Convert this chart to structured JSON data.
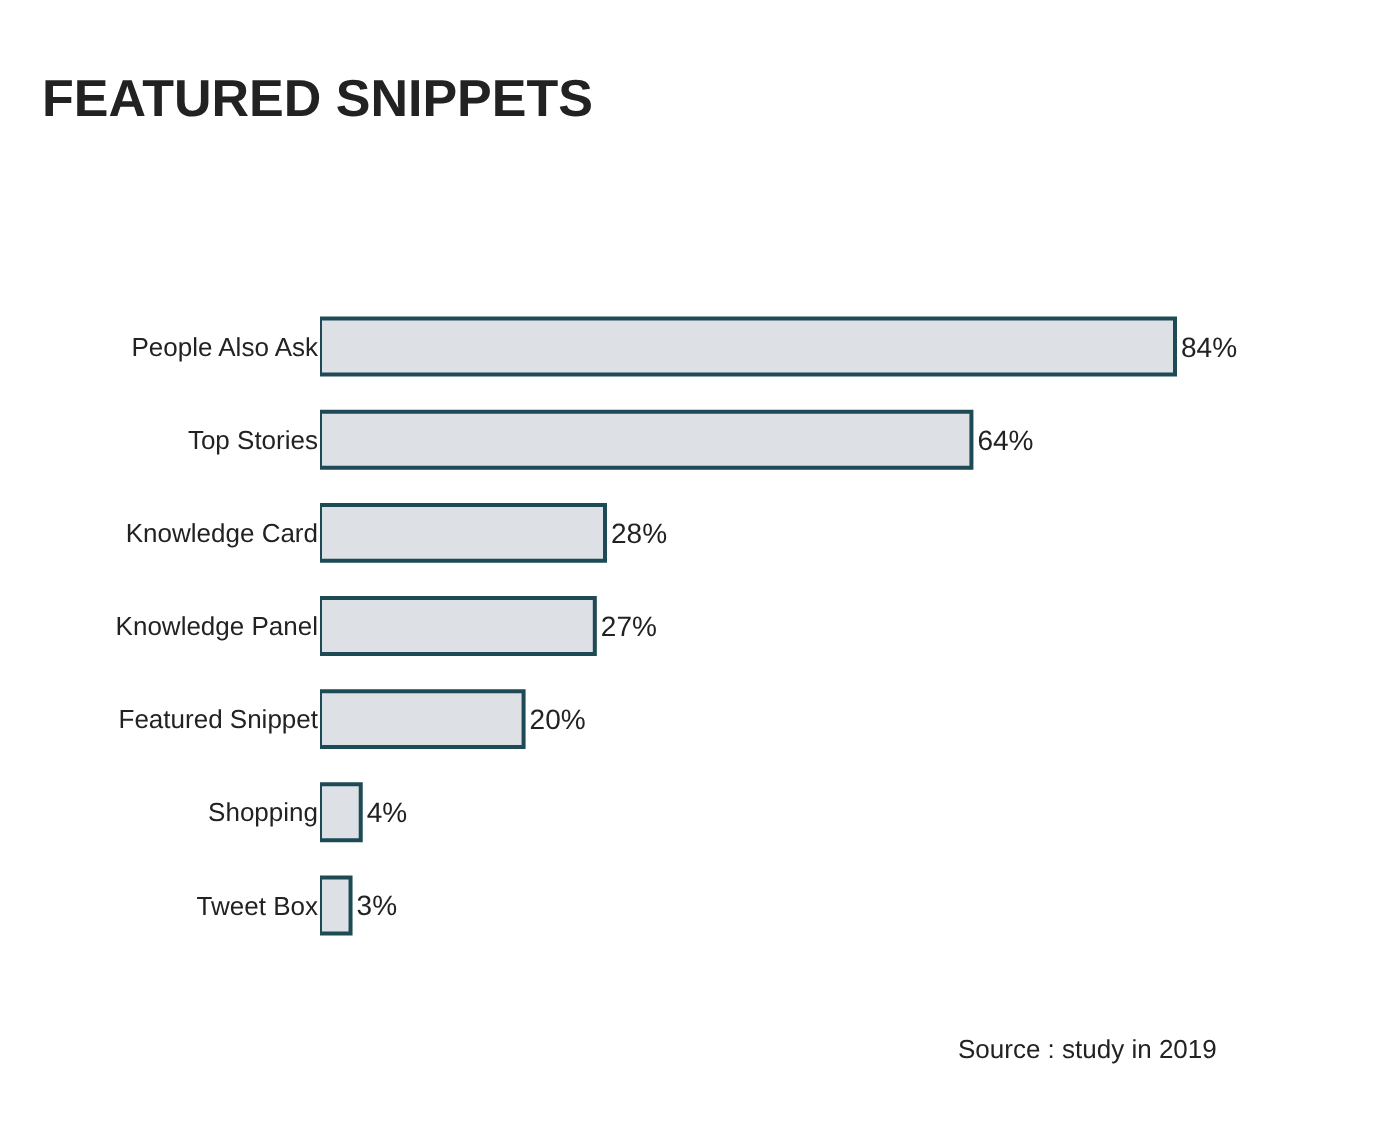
{
  "chart_data": {
    "type": "bar",
    "orientation": "horizontal",
    "title": "FEATURED SNIPPETS",
    "categories": [
      "People Also Ask",
      "Top Stories",
      "Knowledge Card",
      "Knowledge Panel",
      "Featured Snippet",
      "Shopping",
      "Tweet Box"
    ],
    "values": [
      84,
      64,
      28,
      27,
      20,
      4,
      3
    ],
    "value_labels": [
      "84%",
      "64%",
      "28%",
      "27%",
      "20%",
      "4%",
      "3%"
    ],
    "color": "#dde1e6",
    "annotations": [
      "Source : study in 2019"
    ]
  }
}
